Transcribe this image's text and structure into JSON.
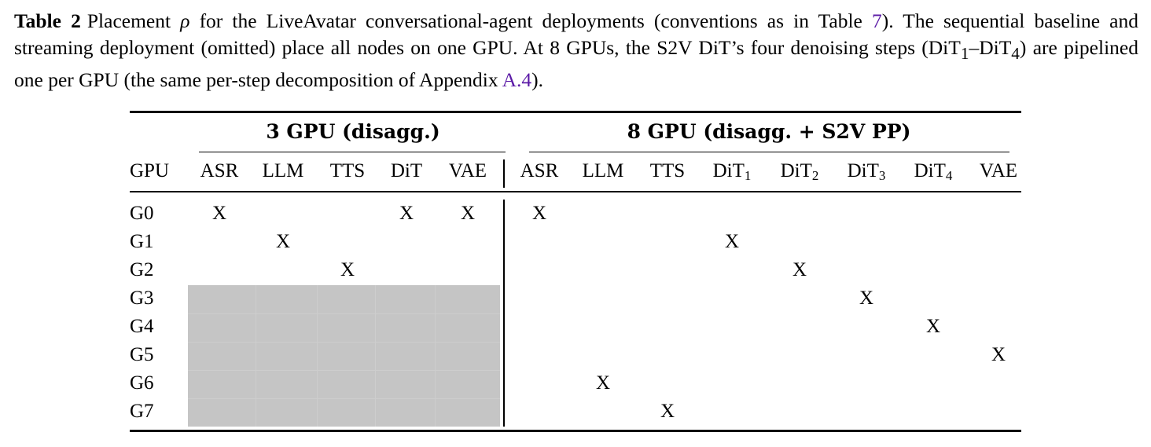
{
  "caption": {
    "label": "Table 2",
    "text_1": "Placement ",
    "rho": "ρ",
    "text_2": " for the LiveAvatar conversational-agent deployments (conventions as in Table ",
    "ref_table": "7",
    "text_3": "). The sequential baseline and streaming deployment (omitted) place all nodes on one GPU. At 8 GPUs, the S2V DiT’s four denoising steps (DiT",
    "sub_1": "1",
    "dash": "–DiT",
    "sub_4": "4",
    "text_4": ") are pipelined one per GPU (the same per-step decomposition of Appendix ",
    "ref_appendix": "A.4",
    "text_5": ")."
  },
  "table": {
    "group_3gpu": "3 GPU (disagg.)",
    "group_8gpu": "8 GPU (disagg. + S2V PP)",
    "row_header": "GPU",
    "cols_3gpu": [
      "ASR",
      "LLM",
      "TTS",
      "DiT",
      "VAE"
    ],
    "cols_8gpu": [
      {
        "base": "ASR",
        "sub": ""
      },
      {
        "base": "LLM",
        "sub": ""
      },
      {
        "base": "TTS",
        "sub": ""
      },
      {
        "base": "DiT",
        "sub": "1"
      },
      {
        "base": "DiT",
        "sub": "2"
      },
      {
        "base": "DiT",
        "sub": "3"
      },
      {
        "base": "DiT",
        "sub": "4"
      },
      {
        "base": "VAE",
        "sub": ""
      }
    ],
    "rows": [
      "G0",
      "G1",
      "G2",
      "G3",
      "G4",
      "G5",
      "G6",
      "G7"
    ],
    "mark": "X",
    "placement_3gpu": [
      [
        0,
        3,
        4
      ],
      [
        1
      ],
      [
        2
      ],
      [],
      [],
      [],
      [],
      []
    ],
    "placement_8gpu": [
      [
        0
      ],
      [
        3
      ],
      [
        4
      ],
      [
        5
      ],
      [
        6
      ],
      [
        7
      ],
      [
        1
      ],
      [
        2
      ]
    ],
    "unused_rows_3gpu": [
      "G3",
      "G4",
      "G5",
      "G6",
      "G7"
    ],
    "shade_color": "#c5c5c5"
  }
}
